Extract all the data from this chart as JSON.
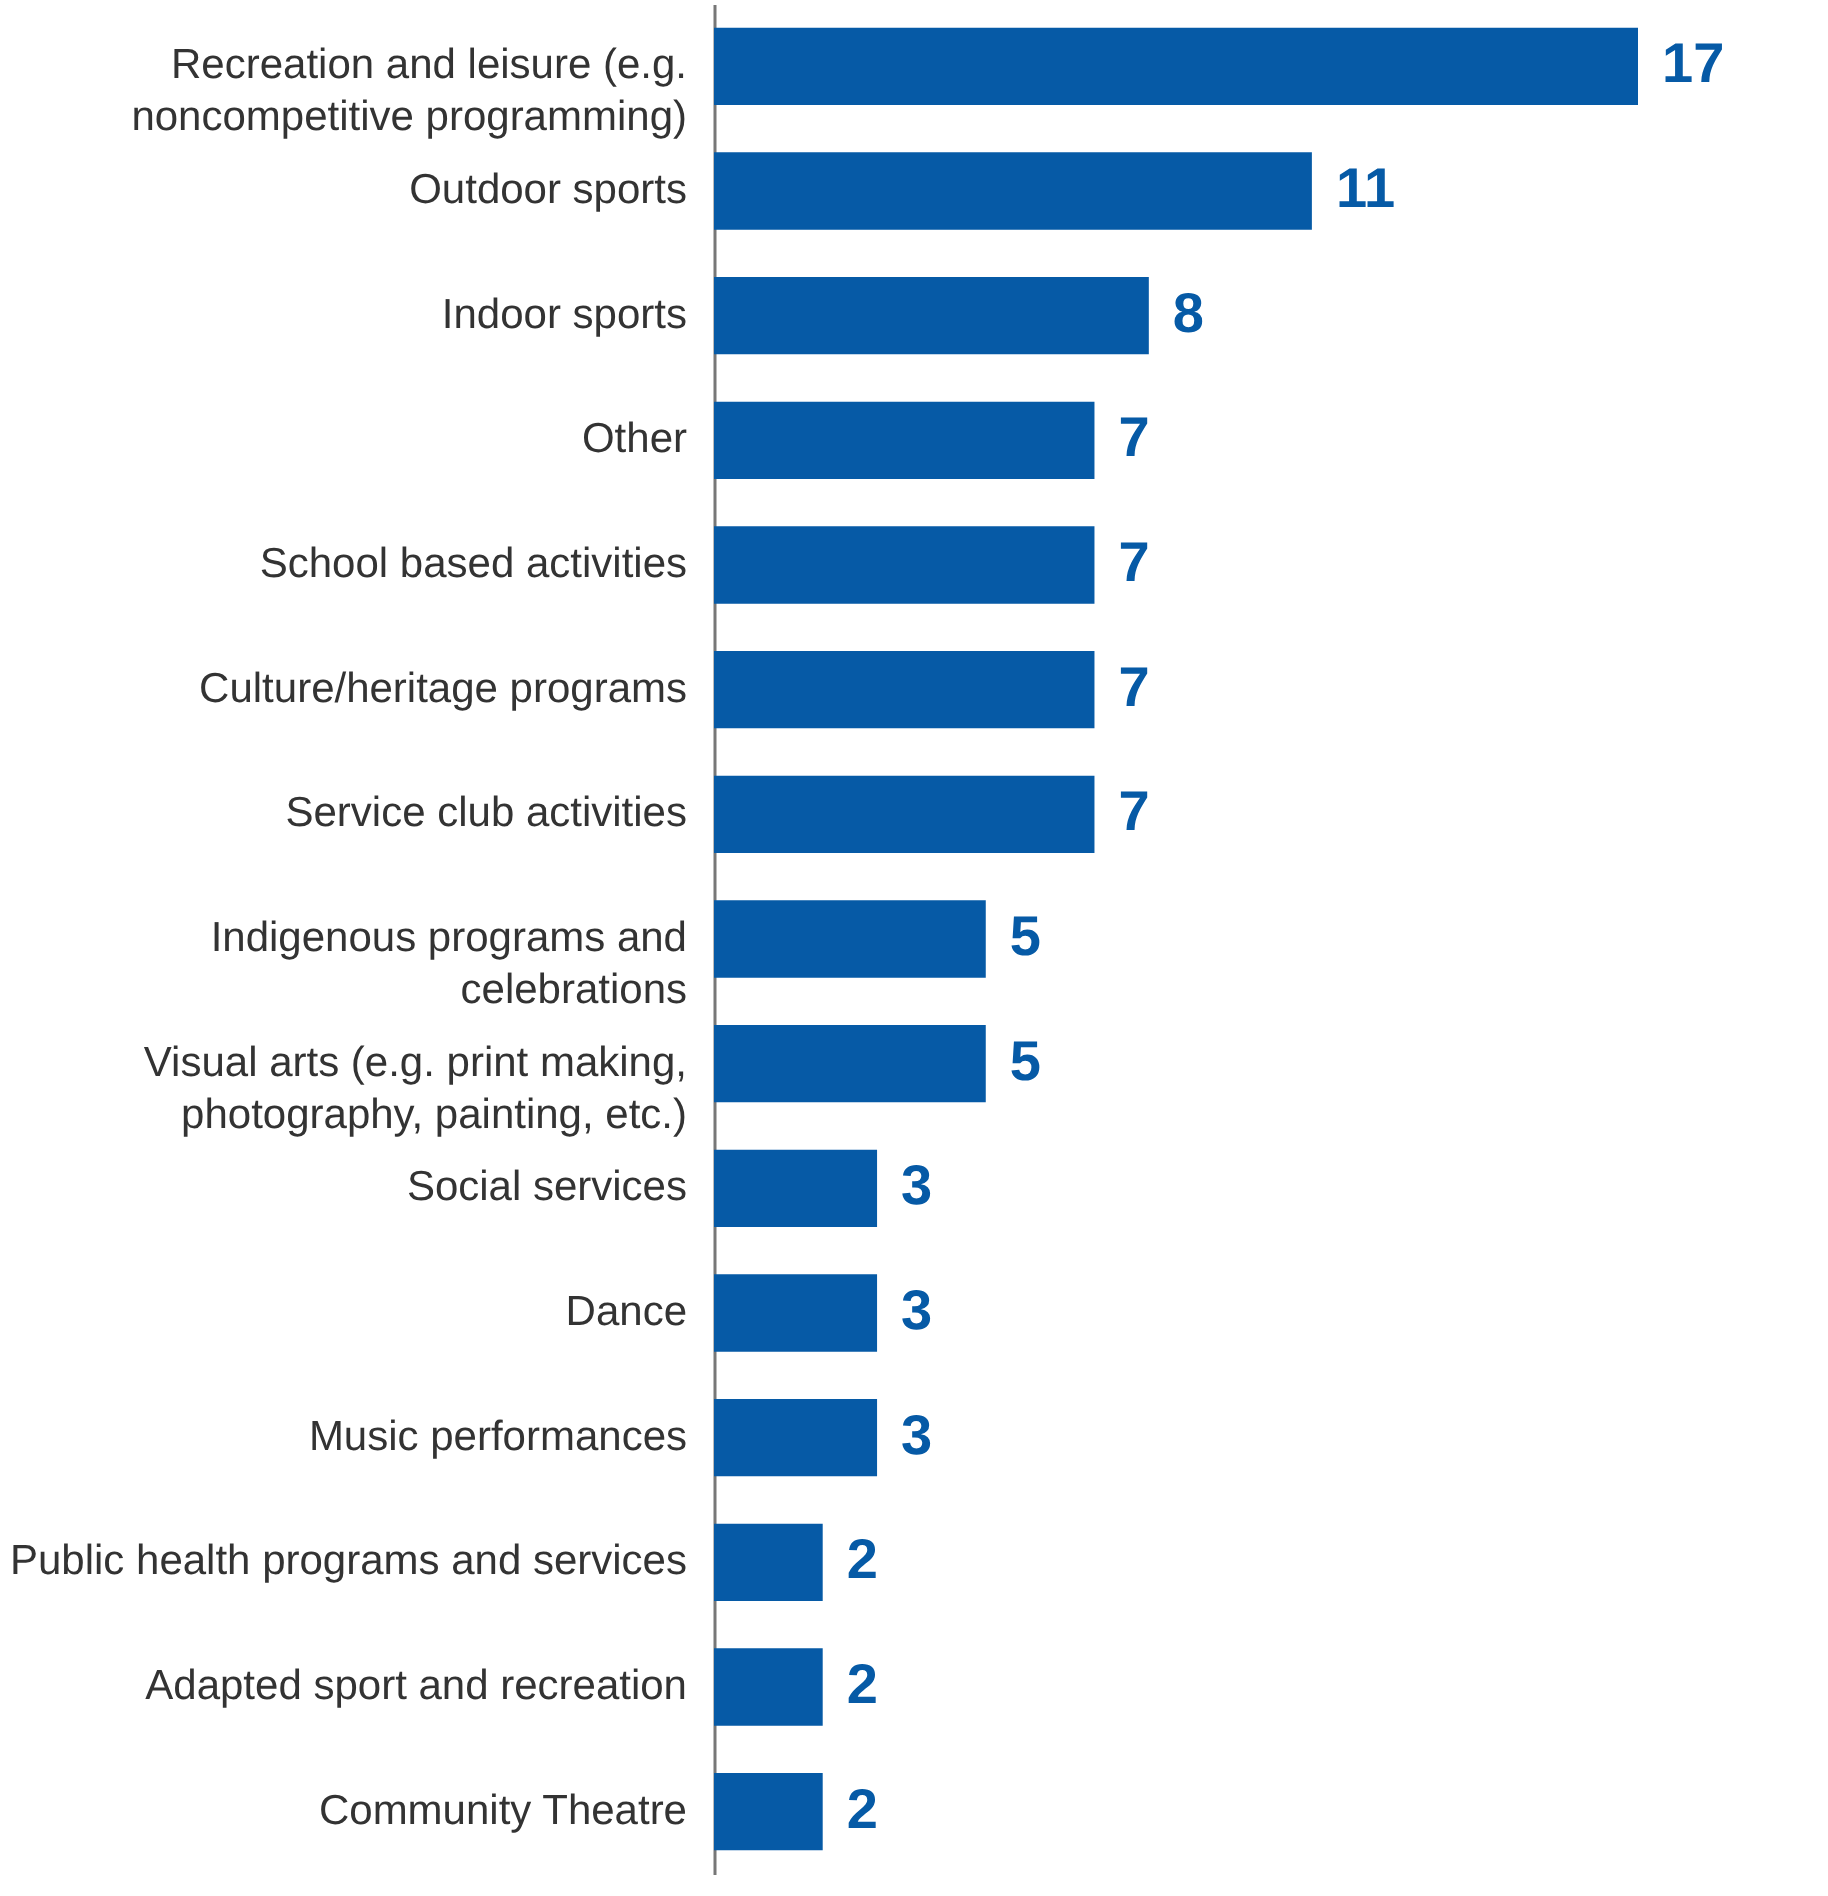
{
  "chart_data": {
    "type": "bar",
    "orientation": "horizontal",
    "data_labels": true,
    "color": "#065aa6",
    "categories": [
      "Recreation and leisure (e.g. noncompetitive programming)",
      "Outdoor sports",
      "Indoor sports",
      "Other",
      "School based activities",
      "Culture/heritage programs",
      "Service club activities",
      "Indigenous programs and celebrations",
      "Visual arts (e.g. print making, photography, painting, etc.)",
      "Social services",
      "Dance",
      "Music performances",
      "Public health programs and services",
      "Adapted sport and recreation",
      "Community Theatre"
    ],
    "values": [
      17,
      11,
      8,
      7,
      7,
      7,
      7,
      5,
      5,
      3,
      3,
      3,
      2,
      2,
      2
    ]
  }
}
